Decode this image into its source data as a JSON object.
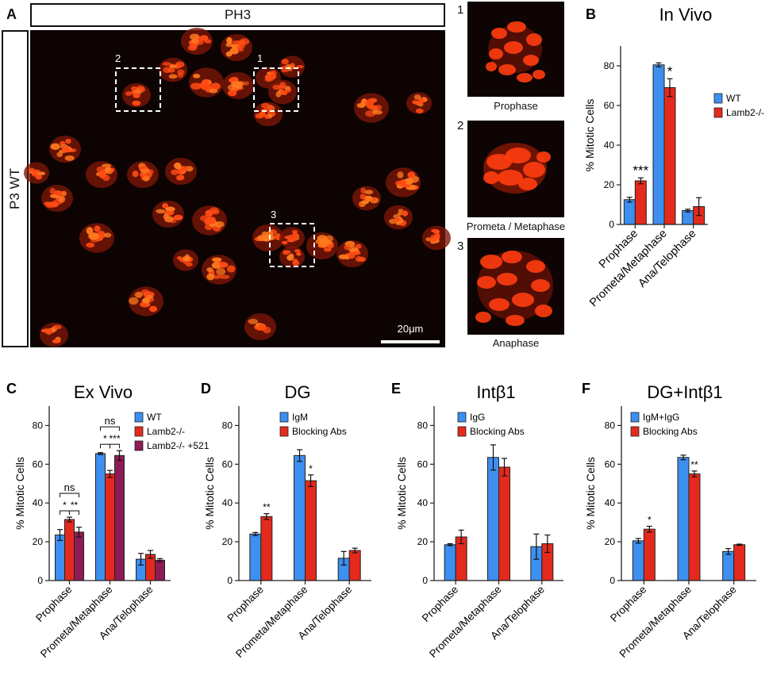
{
  "panel_a": {
    "letter": "A",
    "stain": "PH3",
    "row_label": "P3 WT",
    "box_labels": [
      "1",
      "2",
      "3"
    ],
    "scale_bar": "20μm",
    "insets": [
      {
        "num": "1",
        "caption": "Prophase"
      },
      {
        "num": "2",
        "caption": "Prometa / Metaphase"
      },
      {
        "num": "3",
        "caption": "Anaphase"
      }
    ],
    "colors": {
      "background": "#0d0303",
      "nuclei": "#ff4a14"
    }
  },
  "colors": {
    "wt": "#3d8ff0",
    "red": "#e42a1c",
    "purple": "#8e1b55"
  },
  "chart_data": [
    {
      "letter": "B",
      "type": "bar",
      "title": "In Vivo",
      "ylabel": "% Mitotic Cells",
      "ylim": [
        0,
        90
      ],
      "yticks": [
        0,
        20,
        40,
        60,
        80
      ],
      "categories": [
        "Prophase",
        "Prometa/Metaphase",
        "Ana/Telophase"
      ],
      "series": [
        {
          "name": "WT",
          "color": "#3d8ff0",
          "values": [
            12.5,
            80.5,
            7
          ],
          "errors": [
            1.2,
            1.0,
            0.7
          ]
        },
        {
          "name": "Lamb2-/-",
          "color": "#e42a1c",
          "values": [
            22,
            69,
            9
          ],
          "errors": [
            1.5,
            4.5,
            4.5
          ]
        }
      ],
      "significance": [
        {
          "category": 0,
          "series": 1,
          "label": "***"
        },
        {
          "category": 1,
          "series": 1,
          "label": "*"
        }
      ],
      "legend_position": "right"
    },
    {
      "letter": "C",
      "type": "bar",
      "title": "Ex Vivo",
      "ylabel": "% Mitotic Cells",
      "ylim": [
        0,
        90
      ],
      "yticks": [
        0,
        20,
        40,
        60,
        80
      ],
      "categories": [
        "Prophase",
        "Prometa/Metaphase",
        "Ana/Telophase"
      ],
      "series": [
        {
          "name": "WT",
          "color": "#3d8ff0",
          "values": [
            23.5,
            65.5,
            11
          ],
          "errors": [
            2.8,
            0.5,
            3
          ]
        },
        {
          "name": "Lamb2-/-",
          "color": "#e42a1c",
          "values": [
            31.5,
            55,
            13.5
          ],
          "errors": [
            1.2,
            1.8,
            2
          ]
        },
        {
          "name": "Lamb2-/- +521",
          "color": "#8e1b55",
          "values": [
            25,
            64.5,
            10.5
          ],
          "errors": [
            2.5,
            2.5,
            0.8
          ]
        }
      ],
      "brackets": [
        {
          "category": 0,
          "from": 0,
          "to": 1,
          "label": "*",
          "level": 1
        },
        {
          "category": 0,
          "from": 1,
          "to": 2,
          "label": "**",
          "level": 1
        },
        {
          "category": 0,
          "from": 0,
          "to": 2,
          "label": "ns",
          "level": 2
        },
        {
          "category": 1,
          "from": 0,
          "to": 1,
          "label": "*",
          "level": 1
        },
        {
          "category": 1,
          "from": 1,
          "to": 2,
          "label": "***",
          "level": 1
        },
        {
          "category": 1,
          "from": 0,
          "to": 2,
          "label": "ns",
          "level": 2
        }
      ],
      "legend_position": "top-right"
    },
    {
      "letter": "D",
      "type": "bar",
      "title": "DG",
      "ylabel": "% Mitotic Cells",
      "ylim": [
        0,
        90
      ],
      "yticks": [
        0,
        20,
        40,
        60,
        80
      ],
      "categories": [
        "Prophase",
        "Prometa/Metaphase",
        "Ana/Telophase"
      ],
      "series": [
        {
          "name": "IgM",
          "color": "#3d8ff0",
          "values": [
            24,
            64.5,
            11.5
          ],
          "errors": [
            0.8,
            3,
            3.5
          ]
        },
        {
          "name": "Blocking Abs",
          "color": "#e42a1c",
          "values": [
            33,
            51.5,
            15.5
          ],
          "errors": [
            1.5,
            3,
            1.2
          ]
        }
      ],
      "significance": [
        {
          "category": 0,
          "series": 1,
          "label": "**"
        },
        {
          "category": 1,
          "series": 1,
          "label": "*"
        }
      ],
      "legend_position": "top-left"
    },
    {
      "letter": "E",
      "type": "bar",
      "title": "Intβ1",
      "ylabel": "% Mitotic Cells",
      "ylim": [
        0,
        90
      ],
      "yticks": [
        0,
        20,
        40,
        60,
        80
      ],
      "categories": [
        "Prophase",
        "Prometa/Metaphase",
        "Ana/Telophase"
      ],
      "series": [
        {
          "name": "IgG",
          "color": "#3d8ff0",
          "values": [
            18.5,
            63.5,
            17.5
          ],
          "errors": [
            0.5,
            6.5,
            6.5
          ]
        },
        {
          "name": "Blocking Abs",
          "color": "#e42a1c",
          "values": [
            22.5,
            58.5,
            19
          ],
          "errors": [
            3.5,
            4.5,
            4.5
          ]
        }
      ],
      "significance": [],
      "legend_position": "top-left"
    },
    {
      "letter": "F",
      "type": "bar",
      "title": "DG+Intβ1",
      "ylabel": "% Mitotic Cells",
      "ylim": [
        0,
        90
      ],
      "yticks": [
        0,
        20,
        40,
        60,
        80
      ],
      "categories": [
        "Prophase",
        "Prometa/Metaphase",
        "Ana/Telophase"
      ],
      "series": [
        {
          "name": "IgM+IgG",
          "color": "#3d8ff0",
          "values": [
            20.5,
            63.5,
            15
          ],
          "errors": [
            1.2,
            1.2,
            1.5
          ]
        },
        {
          "name": "Blocking Abs",
          "color": "#e42a1c",
          "values": [
            26.5,
            55,
            18.5
          ],
          "errors": [
            1.5,
            1.5,
            0.3
          ]
        }
      ],
      "significance": [
        {
          "category": 0,
          "series": 1,
          "label": "*"
        },
        {
          "category": 1,
          "series": 1,
          "label": "**"
        }
      ],
      "legend_position": "top-left"
    }
  ]
}
